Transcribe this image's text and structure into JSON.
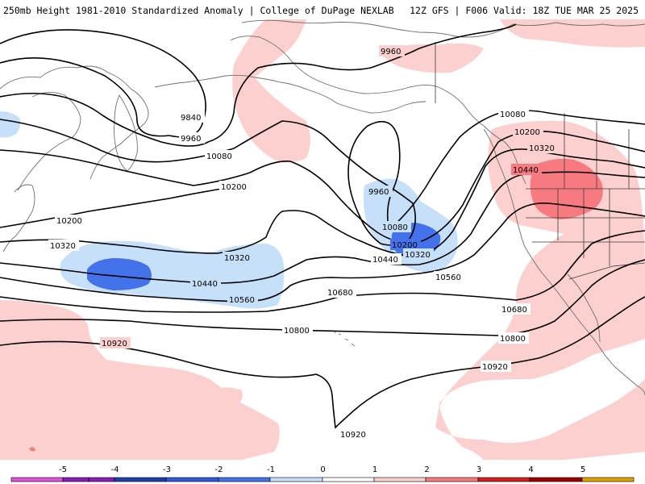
{
  "header": {
    "left_title": "250mb Height 1981-2010 Standardized Anomaly | College of DuPage NEXLAB",
    "right_title": "12Z GFS | F006 Valid: 18Z TUE MAR 25 2025"
  },
  "palette": {
    "anom_pos_1": "#fdd0d0",
    "anom_pos_2": "#f77a80",
    "anom_neg_1": "#c6e0fa",
    "anom_neg_2": "#4472ea",
    "land_outline": "#6f6f6f",
    "contour": "#000000"
  },
  "contour_labels": [
    {
      "id": "9840",
      "text": "9840"
    },
    {
      "id": "9960a",
      "text": "9960"
    },
    {
      "id": "9960b",
      "text": "9960"
    },
    {
      "id": "9960c",
      "text": "9960"
    },
    {
      "id": "10080a",
      "text": "10080"
    },
    {
      "id": "10080b",
      "text": "10080"
    },
    {
      "id": "10080c",
      "text": "10080"
    },
    {
      "id": "10200a",
      "text": "10200"
    },
    {
      "id": "10200b",
      "text": "10200"
    },
    {
      "id": "10200c",
      "text": "10200"
    },
    {
      "id": "10200d",
      "text": "10200"
    },
    {
      "id": "10320a",
      "text": "10320"
    },
    {
      "id": "10320b",
      "text": "10320"
    },
    {
      "id": "10320c",
      "text": "10320"
    },
    {
      "id": "10320d",
      "text": "10320"
    },
    {
      "id": "10440a",
      "text": "10440"
    },
    {
      "id": "10440b",
      "text": "10440"
    },
    {
      "id": "10440c",
      "text": "10440"
    },
    {
      "id": "10560a",
      "text": "10560"
    },
    {
      "id": "10560b",
      "text": "10560"
    },
    {
      "id": "10680a",
      "text": "10680"
    },
    {
      "id": "10680b",
      "text": "10680"
    },
    {
      "id": "10800a",
      "text": "10800"
    },
    {
      "id": "10800b",
      "text": "10800"
    },
    {
      "id": "10920a",
      "text": "10920"
    },
    {
      "id": "10920b",
      "text": "10920"
    },
    {
      "id": "10920c",
      "text": "10920"
    }
  ],
  "colorbar": {
    "ticks": [
      "-5",
      "-4",
      "-3",
      "-2",
      "-1",
      "0",
      "1",
      "2",
      "3",
      "4",
      "5"
    ],
    "colors": [
      "#e050e0",
      "#8a1bb8",
      "#1c3fae",
      "#2f59d8",
      "#4472ea",
      "#c6e0fa",
      "#ffffff",
      "#fdd0d0",
      "#f77a80",
      "#d41e1e",
      "#9e0000",
      "#e0a000",
      "#f7c800"
    ]
  }
}
